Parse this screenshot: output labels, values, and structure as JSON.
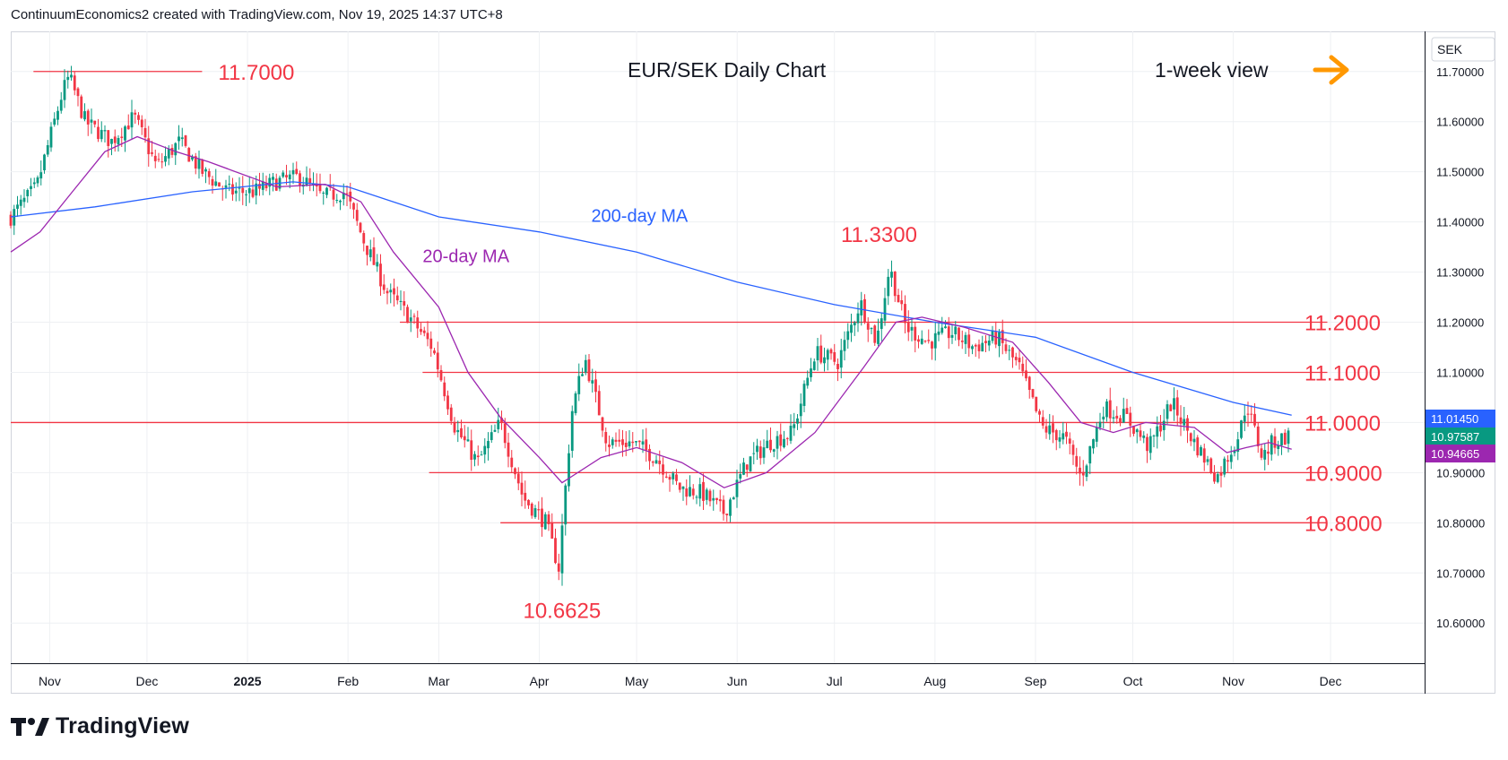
{
  "header": {
    "attribution": "ContinuumEconomics2 created with TradingView.com, Nov 19, 2025 14:37 UTC+8"
  },
  "footer": {
    "brand": "TradingView"
  },
  "view_label": "1-week view",
  "colors": {
    "up": "#089981",
    "down": "#f23645",
    "ma20": "#9c27b0",
    "ma200": "#2962ff",
    "level": "#f23645",
    "arrow": "#ff9800",
    "grid": "#eef0f3",
    "text": "#131722"
  },
  "chart_data": {
    "type": "candlestick",
    "title": "EUR/SEK Daily Chart",
    "currency": "SEK",
    "ylim": [
      10.52,
      11.78
    ],
    "y_ticks": [
      "11.70000",
      "11.60000",
      "11.50000",
      "11.40000",
      "11.30000",
      "11.20000",
      "11.10000",
      "11.00000",
      "10.90000",
      "10.80000",
      "10.70000",
      "10.60000"
    ],
    "x_labels": [
      "Nov",
      "Dec",
      "2025",
      "Feb",
      "Mar",
      "Apr",
      "May",
      "Jun",
      "Jul",
      "Aug",
      "Sep",
      "Oct",
      "Nov",
      "Dec"
    ],
    "series": [
      {
        "name": "200-day MA",
        "points": [
          [
            "2024-10-20",
            11.41
          ],
          [
            "2024-11-15",
            11.43
          ],
          [
            "2024-12-15",
            11.46
          ],
          [
            "2025-01-15",
            11.48
          ],
          [
            "2025-02-01",
            11.47
          ],
          [
            "2025-02-15",
            11.44
          ],
          [
            "2025-03-01",
            11.41
          ],
          [
            "2025-04-01",
            11.38
          ],
          [
            "2025-05-01",
            11.34
          ],
          [
            "2025-06-01",
            11.28
          ],
          [
            "2025-07-01",
            11.235
          ],
          [
            "2025-08-01",
            11.2
          ],
          [
            "2025-09-01",
            11.17
          ],
          [
            "2025-10-01",
            11.1
          ],
          [
            "2025-11-01",
            11.04
          ],
          [
            "2025-11-19",
            11.0145
          ]
        ]
      },
      {
        "name": "20-day MA",
        "points": [
          [
            "2024-10-20",
            11.34
          ],
          [
            "2024-10-29",
            11.38
          ],
          [
            "2024-11-08",
            11.46
          ],
          [
            "2024-11-18",
            11.54
          ],
          [
            "2024-11-28",
            11.57
          ],
          [
            "2024-12-10",
            11.54
          ],
          [
            "2024-12-20",
            11.52
          ],
          [
            "2025-01-10",
            11.47
          ],
          [
            "2025-01-25",
            11.475
          ],
          [
            "2025-02-05",
            11.44
          ],
          [
            "2025-02-15",
            11.34
          ],
          [
            "2025-03-01",
            11.23
          ],
          [
            "2025-03-10",
            11.1
          ],
          [
            "2025-03-20",
            11.01
          ],
          [
            "2025-04-01",
            10.93
          ],
          [
            "2025-04-08",
            10.88
          ],
          [
            "2025-04-20",
            10.93
          ],
          [
            "2025-05-01",
            10.95
          ],
          [
            "2025-05-15",
            10.92
          ],
          [
            "2025-05-28",
            10.87
          ],
          [
            "2025-06-10",
            10.9
          ],
          [
            "2025-06-25",
            10.98
          ],
          [
            "2025-07-10",
            11.11
          ],
          [
            "2025-07-20",
            11.2
          ],
          [
            "2025-07-28",
            11.21
          ],
          [
            "2025-08-10",
            11.19
          ],
          [
            "2025-08-25",
            11.16
          ],
          [
            "2025-09-05",
            11.08
          ],
          [
            "2025-09-15",
            11.0
          ],
          [
            "2025-09-25",
            10.98
          ],
          [
            "2025-10-05",
            11.0
          ],
          [
            "2025-10-20",
            10.99
          ],
          [
            "2025-10-30",
            10.94
          ],
          [
            "2025-11-05",
            10.95
          ],
          [
            "2025-11-12",
            10.96
          ],
          [
            "2025-11-19",
            10.94665
          ]
        ]
      },
      {
        "name": "Price (daily close)",
        "points": [
          [
            "2024-10-20",
            11.41
          ],
          [
            "2024-10-28",
            11.47
          ],
          [
            "2024-11-05",
            11.66
          ],
          [
            "2024-11-07",
            11.69
          ],
          [
            "2024-11-12",
            11.6
          ],
          [
            "2024-11-20",
            11.56
          ],
          [
            "2024-11-27",
            11.61
          ],
          [
            "2024-12-04",
            11.51
          ],
          [
            "2024-12-11",
            11.56
          ],
          [
            "2024-12-18",
            11.5
          ],
          [
            "2024-12-26",
            11.46
          ],
          [
            "2025-01-03",
            11.46
          ],
          [
            "2025-01-10",
            11.48
          ],
          [
            "2025-01-17",
            11.49
          ],
          [
            "2025-01-24",
            11.45
          ],
          [
            "2025-01-31",
            11.46
          ],
          [
            "2025-02-06",
            11.36
          ],
          [
            "2025-02-13",
            11.26
          ],
          [
            "2025-02-20",
            11.21
          ],
          [
            "2025-02-27",
            11.15
          ],
          [
            "2025-03-06",
            10.99
          ],
          [
            "2025-03-13",
            10.92
          ],
          [
            "2025-03-20",
            11.0
          ],
          [
            "2025-03-27",
            10.85
          ],
          [
            "2025-04-03",
            10.8
          ],
          [
            "2025-04-07",
            10.71
          ],
          [
            "2025-04-11",
            11.02
          ],
          [
            "2025-04-15",
            11.13
          ],
          [
            "2025-04-22",
            10.96
          ],
          [
            "2025-04-30",
            10.96
          ],
          [
            "2025-05-07",
            10.93
          ],
          [
            "2025-05-14",
            10.87
          ],
          [
            "2025-05-21",
            10.86
          ],
          [
            "2025-05-28",
            10.82
          ],
          [
            "2025-06-04",
            10.92
          ],
          [
            "2025-06-11",
            10.96
          ],
          [
            "2025-06-18",
            10.98
          ],
          [
            "2025-06-25",
            11.14
          ],
          [
            "2025-07-02",
            11.12
          ],
          [
            "2025-07-09",
            11.24
          ],
          [
            "2025-07-14",
            11.16
          ],
          [
            "2025-07-18",
            11.31
          ],
          [
            "2025-07-23",
            11.19
          ],
          [
            "2025-07-30",
            11.16
          ],
          [
            "2025-08-06",
            11.18
          ],
          [
            "2025-08-13",
            11.15
          ],
          [
            "2025-08-20",
            11.17
          ],
          [
            "2025-08-27",
            11.11
          ],
          [
            "2025-09-03",
            10.99
          ],
          [
            "2025-09-10",
            10.97
          ],
          [
            "2025-09-15",
            10.89
          ],
          [
            "2025-09-22",
            11.03
          ],
          [
            "2025-09-29",
            11.01
          ],
          [
            "2025-10-06",
            10.95
          ],
          [
            "2025-10-13",
            11.04
          ],
          [
            "2025-10-20",
            10.96
          ],
          [
            "2025-10-27",
            10.89
          ],
          [
            "2025-11-03",
            10.98
          ],
          [
            "2025-11-05",
            11.04
          ],
          [
            "2025-11-10",
            10.93
          ],
          [
            "2025-11-13",
            10.96
          ],
          [
            "2025-11-19",
            10.97587
          ]
        ]
      }
    ],
    "levels": [
      {
        "value": 11.7,
        "label": "11.7000",
        "from": "2024-10-27",
        "to": "2024-12-18"
      },
      {
        "value": 11.2,
        "label": "11.2000",
        "from": "2025-02-17",
        "to": "2025-11-30"
      },
      {
        "value": 11.1,
        "label": "11.1000",
        "from": "2025-02-24",
        "to": "2025-11-30"
      },
      {
        "value": 11.0,
        "label": "11.0000",
        "from": "2024-10-20",
        "to": "2025-11-30"
      },
      {
        "value": 10.9,
        "label": "10.9000",
        "from": "2025-02-26",
        "to": "2025-11-30"
      },
      {
        "value": 10.8,
        "label": "10.8000",
        "from": "2025-03-20",
        "to": "2025-11-30"
      }
    ],
    "annotations": [
      {
        "text": "200-day MA",
        "date": "2025-04-17",
        "price": 11.4
      },
      {
        "text": "20-day MA",
        "date": "2025-02-24",
        "price": 11.32
      },
      {
        "text": "11.3300",
        "date": "2025-07-03",
        "price": 11.36
      },
      {
        "text": "10.6625",
        "date": "2025-03-27",
        "price": 10.61
      }
    ],
    "price_tags": [
      {
        "value": 11.0145,
        "label": "11.01450",
        "color": "#2962ff"
      },
      {
        "value": 10.97587,
        "label": "10.97587",
        "color": "#089981"
      },
      {
        "value": 10.94665,
        "label": "10.94665",
        "color": "#9c27b0"
      }
    ]
  }
}
